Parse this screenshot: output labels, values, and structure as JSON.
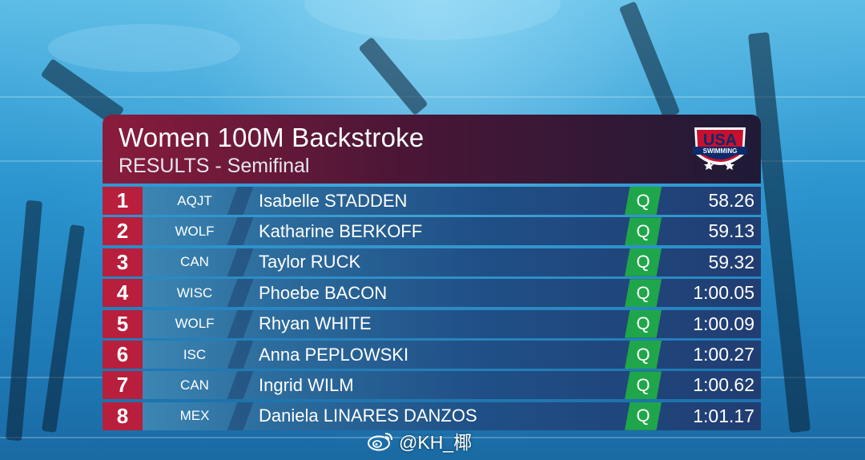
{
  "header": {
    "title": "Women 100M Backstroke",
    "subtitle": "RESULTS - Semifinal",
    "logo_text_top": "USA",
    "logo_text_bottom": "SWIMMING"
  },
  "results": [
    {
      "place": "1",
      "team": "AQJT",
      "name": "Isabelle STADDEN",
      "q": "Q",
      "time": "58.26"
    },
    {
      "place": "2",
      "team": "WOLF",
      "name": "Katharine BERKOFF",
      "q": "Q",
      "time": "59.13"
    },
    {
      "place": "3",
      "team": "CAN",
      "name": "Taylor RUCK",
      "q": "Q",
      "time": "59.32"
    },
    {
      "place": "4",
      "team": "WISC",
      "name": "Phoebe BACON",
      "q": "Q",
      "time": "1:00.05"
    },
    {
      "place": "5",
      "team": "WOLF",
      "name": "Rhyan WHITE",
      "q": "Q",
      "time": "1:00.09"
    },
    {
      "place": "6",
      "team": "ISC",
      "name": "Anna PEPLOWSKI",
      "q": "Q",
      "time": "1:00.27"
    },
    {
      "place": "7",
      "team": "CAN",
      "name": "Ingrid WILM",
      "q": "Q",
      "time": "1:00.62"
    },
    {
      "place": "8",
      "team": "MEX",
      "name": "Daniela LINARES DANZOS",
      "q": "Q",
      "time": "1:01.17"
    }
  ],
  "watermark": {
    "icon": "weibo-icon",
    "text": "@KH_椰"
  },
  "colors": {
    "place_bg": "#b81f3c",
    "qualify_bg": "#1fa64a",
    "header_start": "#8a1c3c",
    "header_end": "#1f1a36"
  }
}
